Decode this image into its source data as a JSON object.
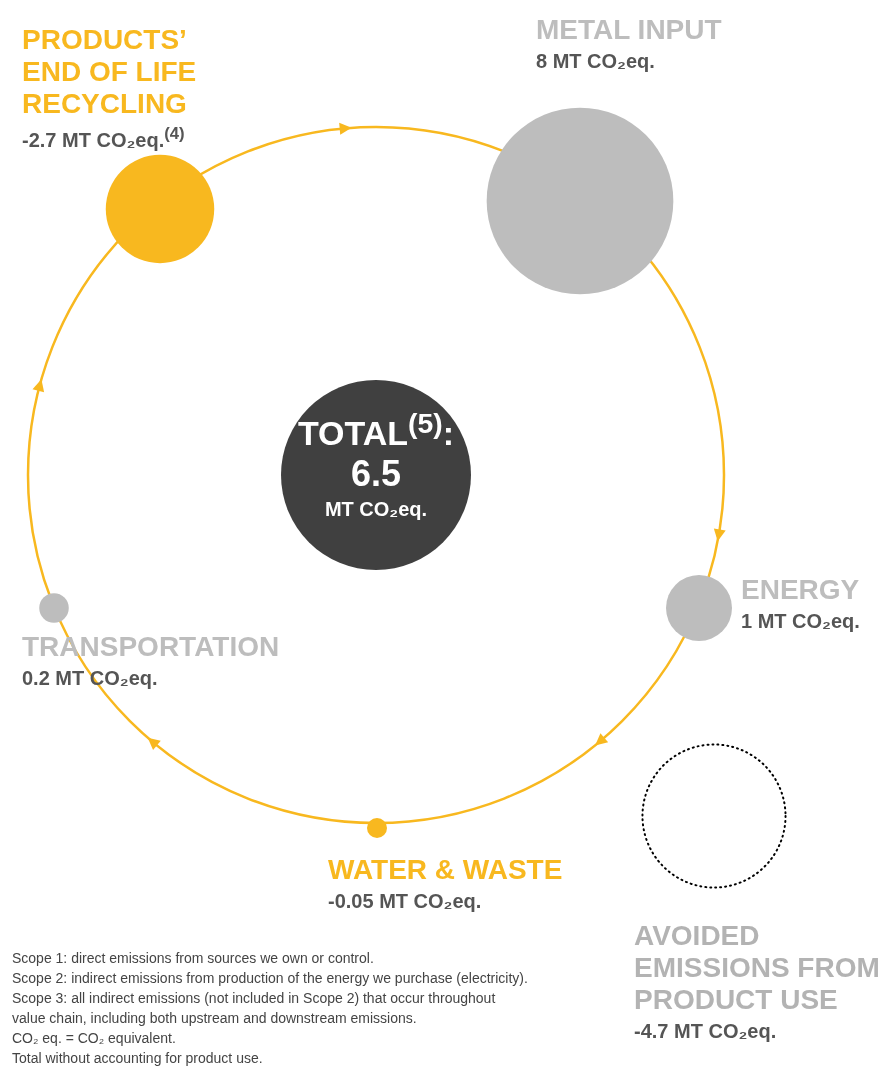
{
  "chart_data": {
    "type": "other",
    "categories": [
      "METAL INPUT",
      "ENERGY",
      "AVOIDED EMISSIONS FROM PRODUCT USE",
      "WATER & WASTE",
      "TRANSPORTATION",
      "PRODUCTS’ END OF LIFE RECYCLING"
    ],
    "values": [
      8,
      1,
      -4.7,
      -0.05,
      0.2,
      -2.7
    ],
    "colors": [
      "#bdbdbd",
      "#bdbdbd",
      null,
      "#f8b81f",
      "#bdbdbd",
      "#f8b81f"
    ],
    "value_labels": [
      "8 MT CO₂eq.",
      "1 MT CO₂eq.",
      "-4.7 MT CO₂eq.",
      "-0.05 MT CO₂eq.",
      "0.2 MT CO₂eq.",
      "-2.7 MT CO₂eq.$^{(4)}$"
    ],
    "annotations": [
      "TOTAL$^{(5)}$:",
      "6.5",
      "MT CO₂eq.",
      "Scope 1: direct emissions from sources we own or control.",
      "Scope 2: indirect emissions from production of the energy we purchase (electricity).",
      "Scope 3: all indirect emissions (not included in Scope 2) that occur throughout",
      "value chain, including both upstream and downstream emissions.",
      "CO₂ eq. = CO₂ equivalent.",
      "Total without accounting for product use."
    ]
  }
}
